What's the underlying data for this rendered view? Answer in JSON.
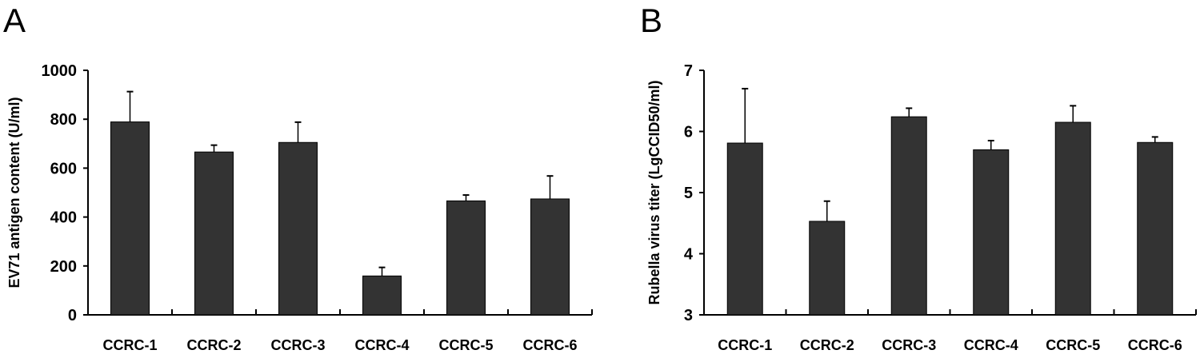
{
  "chart_data": [
    {
      "type": "bar",
      "panel_label": "A",
      "title": "",
      "xlabel": "",
      "ylabel": "EV71 antigen content (U/ml)",
      "ylim": [
        0,
        1000
      ],
      "yticks": [
        0,
        200,
        400,
        600,
        800,
        1000
      ],
      "categories": [
        "CCRC-1",
        "CCRC-2",
        "CCRC-3",
        "CCRC-4",
        "CCRC-5",
        "CCRC-6"
      ],
      "values": [
        789,
        666,
        705,
        159,
        466,
        474
      ],
      "error_upper": [
        913,
        694,
        788,
        194,
        490,
        568
      ],
      "bar_color": "#333333",
      "grid": false
    },
    {
      "type": "bar",
      "panel_label": "B",
      "title": "",
      "xlabel": "",
      "ylabel": "Rubella virus titer (LgCCID50/ml)",
      "ylim": [
        3,
        7
      ],
      "yticks": [
        3,
        4,
        5,
        6,
        7
      ],
      "categories": [
        "CCRC-1",
        "CCRC-2",
        "CCRC-3",
        "CCRC-4",
        "CCRC-5",
        "CCRC-6"
      ],
      "values": [
        5.81,
        4.53,
        6.24,
        5.7,
        6.15,
        5.82
      ],
      "error_upper": [
        6.7,
        4.86,
        6.38,
        5.85,
        6.42,
        5.91
      ],
      "bar_color": "#333333",
      "grid": false
    }
  ]
}
